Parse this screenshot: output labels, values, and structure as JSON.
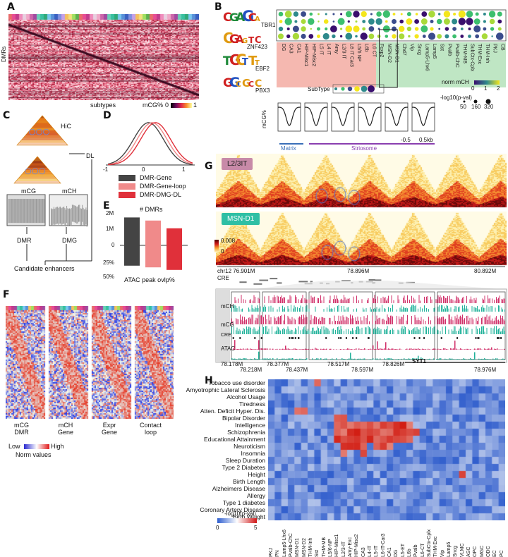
{
  "panelA": {
    "letter": "A",
    "ylabel": "DMRs",
    "xlabel": "subtypes",
    "cbar_label": "mCG%",
    "cbar_min": "0",
    "cbar_max": "1"
  },
  "panelB": {
    "letter": "B",
    "motifs": [
      "TBR1",
      "ZNF423",
      "EBF2",
      "PBX3"
    ],
    "cell_types": [
      "DG",
      "CA3",
      "CA1",
      "HIP-Misc1",
      "HIP-Misc2",
      "L5 IT",
      "L4 IT",
      "Amy",
      "L2/3 IT",
      "L6 IT Car3",
      "L5/6 NP",
      "L6b",
      "L6 CT",
      "Foxp2",
      "MSN-D2",
      "MSN-D1",
      "Chd7",
      "Vip",
      "Sncg",
      "Lamp5-Lhx6",
      "Lamp5",
      "Sst",
      "Pvalb",
      "Pvalb-ChC",
      "THM-MB",
      "SubCtx-Cplx",
      "THM-Exc",
      "THM-Inh",
      "PKJ",
      "CB"
    ],
    "subtype_label": "SubType",
    "norm_label": "norm mCH",
    "norm_ticks": [
      "0",
      "1",
      "2"
    ],
    "pval_label": "-log10(p-val)",
    "size_ticks": [
      "50",
      "160",
      "320"
    ],
    "profile_ylabel": "mCG%",
    "profile_ticks": [
      "-0.5",
      "0.5kb"
    ],
    "matrix_label": "Matrix",
    "striosome_label": "Striosome"
  },
  "panelC": {
    "letter": "C",
    "hic_label": "HiC",
    "dl_label": "DL",
    "mcg_label": "mCG",
    "mch_label": "mCH",
    "dmr_label": "DMR",
    "dmg_label": "DMG",
    "out_label": "Candidate enhancers"
  },
  "panelD": {
    "letter": "D",
    "ticks": [
      "-1",
      "0",
      "1"
    ],
    "legend": [
      "DMR-Gene",
      "DMR-Gene-loop",
      "DMR-DMG-DL"
    ],
    "colors": [
      "#444444",
      "#f08a8a",
      "#e0303a"
    ]
  },
  "panelE": {
    "letter": "E",
    "title": "# DMRs",
    "yticks_top": [
      "2M",
      "1M",
      "0"
    ],
    "yticks_bottom": [
      "25%",
      "50%"
    ],
    "xlabel": "ATAC peak ovlp%"
  },
  "panelF": {
    "letter": "F",
    "labels": [
      "mCG\nDMR",
      "mCH\nGene",
      "Expr\nGene",
      "Contact\nloop"
    ],
    "label_lines": [
      [
        "mCG",
        "DMR"
      ],
      [
        "mCH",
        "Gene"
      ],
      [
        "Expr",
        "Gene"
      ],
      [
        "Contact",
        "loop"
      ]
    ],
    "cbar_low": "Low",
    "cbar_high": "High",
    "cbar_caption": "Norm values"
  },
  "panelG": {
    "letter": "G",
    "tag1": "L2/3IT",
    "tag2": "MSN-D1",
    "scale_max": "0.008",
    "scale_min": "0",
    "chrom_ticks": [
      "chr12 76.901M",
      "78.896M",
      "80.892M"
    ],
    "cre_label": "CRE",
    "track_labels": [
      "mCH",
      "mCG",
      "CRE",
      "ATAC"
    ],
    "zoom_ticks_top": [
      "78.178M",
      "78.377M",
      "78.517M",
      "78.826M"
    ],
    "zoom_ticks_bottom": [
      "78.218M",
      "78.437M",
      "78.597M",
      "78.976M"
    ],
    "gene_label": "SYT1"
  },
  "panelH": {
    "letter": "H",
    "traits": [
      "Tobacco use disorder",
      "Amyotrophic Lateral Sclerosis",
      "Alcohol Usage",
      "Tiredness",
      "Atten. Deficit Hyper. Dis.",
      "Bipolar Disorder",
      "Intelligence",
      "Schizophrenia",
      "Educational Attainment",
      "Neuroticism",
      "Insomnia",
      "Sleep Duration",
      "Type 2 Diabetes",
      "Height",
      "Birth Length",
      "Alzheimers Disease",
      "Allergy",
      "Type 1 diabetes",
      "Coronary Artery Disease",
      "Birth Weight"
    ],
    "cells": [
      "PKJ",
      "PN",
      "Lamp5-Lhx6",
      "Pvalb-ChC",
      "MSN-D1",
      "MSN-D2",
      "THM-Inh",
      "Sst",
      "THM-MB",
      "L5/6-NP",
      "HIP-Misc1",
      "L2/3-IT",
      "Amy-Exc",
      "HIP-Misc2",
      "CA3",
      "L4-IT",
      "L5-IT",
      "L6-IT-Car3",
      "CA1",
      "DG",
      "L5-ET",
      "L6b",
      "Pvalb",
      "L6-CT",
      "SubCtx-Cplx",
      "THM-Exc",
      "Vip",
      "Lamp5",
      "Sncg",
      "VLMC",
      "ASC",
      "OPC",
      "MGC",
      "ODC",
      "EC",
      "PC"
    ],
    "cbar_label": "-log10(p-val)",
    "cbar_min": "0",
    "cbar_max": "5"
  }
}
